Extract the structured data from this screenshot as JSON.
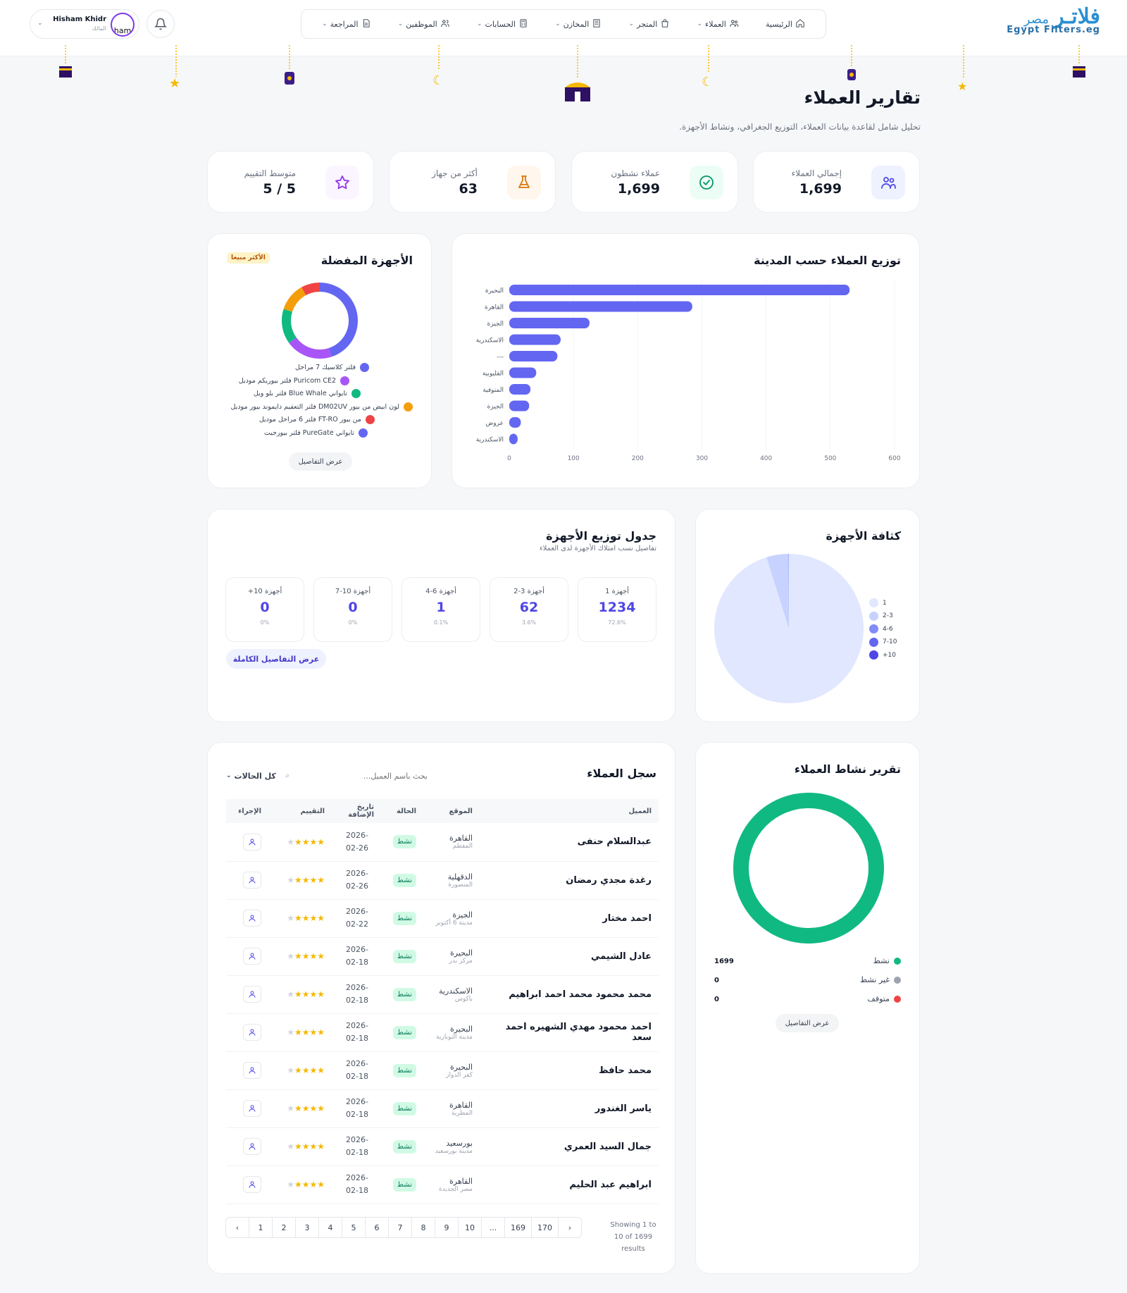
{
  "brand": {
    "logo_ar": "فلاتـر",
    "logo_ar2": "مصر",
    "logo_en": "Egypt Filters.eg",
    "accent": "#4f46e5"
  },
  "nav": [
    {
      "label": "الرئيسية",
      "icon": "home-icon",
      "chevron": false
    },
    {
      "label": "العملاء",
      "icon": "users-icon",
      "chevron": true
    },
    {
      "label": "المتجر",
      "icon": "shop-bag-icon",
      "chevron": true
    },
    {
      "label": "المخازن",
      "icon": "building-icon",
      "chevron": true
    },
    {
      "label": "الحسابات",
      "icon": "calculator-icon",
      "chevron": true
    },
    {
      "label": "الموظفين",
      "icon": "staff-icon",
      "chevron": true
    },
    {
      "label": "المراجعة",
      "icon": "document-icon",
      "chevron": true
    }
  ],
  "user": {
    "name": "Hisham Khidr",
    "role": "المالك",
    "avatar_text": "ham"
  },
  "page": {
    "title": "تقارير العملاء",
    "subtitle": "تحليل شامل لقاعدة بيانات العملاء، التوزيع الجغرافي، ونشاط الأجهزة."
  },
  "stats": [
    {
      "label": "إجمالي العملاء",
      "value": "1,699",
      "icon": "users-icon",
      "color": "#4f46e5",
      "bg": "#eef2ff"
    },
    {
      "label": "عملاء نشطون",
      "value": "1,699",
      "icon": "check-circle-icon",
      "color": "#059669",
      "bg": "#ecfdf5"
    },
    {
      "label": "أكثر من جهاز",
      "value": "63",
      "icon": "flask-icon",
      "color": "#d97706",
      "bg": "#fff7ed"
    },
    {
      "label": "متوسط التقييم",
      "value": "5 / 5",
      "icon": "star-icon",
      "color": "#9333ea",
      "bg": "#faf5ff"
    }
  ],
  "city_chart": {
    "title": "توزيع العملاء حسب المدينة"
  },
  "devices": {
    "title": "الأجهزة المفضلة",
    "badge": "الأكثر مبيعا",
    "details_label": "عرض التفاصيل",
    "legend": [
      {
        "label": "فلتر كلاسيك 7 مراحل",
        "color": "#6366f1"
      },
      {
        "label": "فلتر بيوريكم موديل Puricom CE2",
        "color": "#a855f7"
      },
      {
        "label": "فلتر بلو ويل Blue Whale تايواني",
        "color": "#10b981"
      },
      {
        "label": "فلتر التعقيم دايموند بيور موديل DM02UV لون ابيض من بيور",
        "color": "#f59e0b"
      },
      {
        "label": "فلتر 6 مراحل موديل FT-RO من بيور",
        "color": "#ef4444"
      },
      {
        "label": "فلتر بيورجيت PureGate تايواني",
        "color": "#6366f1"
      }
    ]
  },
  "density": {
    "title": "كثافة الأجهزة",
    "legend": [
      {
        "label": "1",
        "color": "#e0e7ff"
      },
      {
        "label": "2-3",
        "color": "#c7d2fe"
      },
      {
        "label": "4-6",
        "color": "#818cf8"
      },
      {
        "label": "7-10",
        "color": "#6366f1"
      },
      {
        "label": "+10",
        "color": "#4f46e5"
      }
    ]
  },
  "dist_table": {
    "title": "جدول توزيع الأجهزة",
    "subtitle": "تفاصيل نسب امتلاك الأجهزة لدى العملاء",
    "btn": "عرض التفاصيل الكاملة",
    "items": [
      {
        "label": "1 أجهزة",
        "count": "1234",
        "pct": "72.6%"
      },
      {
        "label": "2-3 أجهزة",
        "count": "62",
        "pct": "3.6%"
      },
      {
        "label": "4-6 أجهزة",
        "count": "1",
        "pct": "0.1%"
      },
      {
        "label": "7-10 أجهزة",
        "count": "0",
        "pct": "0%"
      },
      {
        "label": "+10 أجهزة",
        "count": "0",
        "pct": "0%"
      }
    ]
  },
  "activity": {
    "title": "تقرير نشاط العملاء",
    "details_label": "عرض التفاصيل",
    "items": [
      {
        "label": "نشط",
        "value": "1699",
        "color": "#10b981"
      },
      {
        "label": "غير نشط",
        "value": "0",
        "color": "#9ca3af"
      },
      {
        "label": "متوقف",
        "value": "0",
        "color": "#ef4444"
      }
    ]
  },
  "customers": {
    "title": "سجل العملاء",
    "search_placeholder": "بحث باسم العميل...",
    "filter_label": "كل الحالات",
    "columns": [
      "العميل",
      "الموقع",
      "الحالة",
      "تاريخ الإضافة",
      "التقييم",
      "الإجراء"
    ],
    "rows": [
      {
        "name": "عبدالسلام حنفى",
        "city": "القاهرة",
        "area": "المقطم",
        "status": "نشط",
        "date": "2026-02-26"
      },
      {
        "name": "رغدة مجدي رمضان",
        "city": "الدقهلية",
        "area": "المنصورة",
        "status": "نشط",
        "date": "2026-02-26"
      },
      {
        "name": "احمد مختار",
        "city": "الجيزة",
        "area": "مدينة 6 أكتوبر",
        "status": "نشط",
        "date": "2026-02-22"
      },
      {
        "name": "عادل الشيمي",
        "city": "البحيرة",
        "area": "مركز بدر",
        "status": "نشط",
        "date": "2026-02-18"
      },
      {
        "name": "محمد محمود محمد احمد ابراهيم",
        "city": "الاسكندرية",
        "area": "باكوس",
        "status": "نشط",
        "date": "2026-02-18"
      },
      {
        "name": "احمد محمود مهدي الشهيره احمد سعد",
        "city": "البحيرة",
        "area": "مدينة النوبارية",
        "status": "نشط",
        "date": "2026-02-18"
      },
      {
        "name": "محمد حافظ",
        "city": "البحيرة",
        "area": "كفر الدوار",
        "status": "نشط",
        "date": "2026-02-18"
      },
      {
        "name": "ياسر الغندور",
        "city": "القاهرة",
        "area": "المطرية",
        "status": "نشط",
        "date": "2026-02-18"
      },
      {
        "name": "جمال السيد العمري",
        "city": "بورسعيد",
        "area": "مدينة بورسعيد",
        "status": "نشط",
        "date": "2026-02-18"
      },
      {
        "name": "ابراهيم عبد الحليم",
        "city": "القاهرة",
        "area": "مصر الجديدة",
        "status": "نشط",
        "date": "2026-02-18"
      }
    ],
    "pages": [
      "‹",
      "1",
      "2",
      "3",
      "4",
      "5",
      "6",
      "7",
      "8",
      "9",
      "10",
      "...",
      "169",
      "170",
      "›"
    ],
    "showing": "Showing 1 to 10 of 1699 results"
  },
  "chart_data": [
    {
      "type": "bar",
      "orientation": "horizontal",
      "title": "توزيع العملاء حسب المدينة",
      "categories": [
        "البحيرة",
        "القاهرة",
        "الجيزة",
        "الاسكندرية",
        "---",
        "القليوبية",
        "المنوفية",
        "الجيزة",
        "عروض",
        "الاسكندرية"
      ],
      "values": [
        530,
        285,
        125,
        80,
        75,
        42,
        33,
        31,
        18,
        13
      ],
      "xlim": [
        0,
        600
      ],
      "xticks": [
        "0",
        "100",
        "200",
        "300",
        "400",
        "500",
        "600"
      ],
      "color": "#6366f1"
    },
    {
      "type": "pie",
      "donut": true,
      "title": "الأجهزة المفضلة",
      "labels": [
        "فلتر كلاسيك 7 مراحل",
        "فلتر بيوريكم موديل Puricom CE2",
        "فلتر بلو ويل Blue Whale تايواني",
        "فلتر التعقيم دايموند بيور موديل DM02UV لون ابيض من بيور",
        "فلتر 6 مراحل موديل FT-RO من بيور"
      ],
      "values": [
        45,
        20,
        15,
        12,
        8
      ],
      "colors": [
        "#6366f1",
        "#a855f7",
        "#10b981",
        "#f59e0b",
        "#ef4444"
      ]
    },
    {
      "type": "pie",
      "title": "كثافة الأجهزة",
      "labels": [
        "1",
        "2-3",
        "4-6",
        "7-10",
        "+10"
      ],
      "values": [
        1234,
        62,
        1,
        0,
        0
      ],
      "colors": [
        "#e0e7ff",
        "#c7d2fe",
        "#818cf8",
        "#6366f1",
        "#4f46e5"
      ]
    },
    {
      "type": "pie",
      "donut": true,
      "title": "تقرير نشاط العملاء",
      "labels": [
        "نشط",
        "غير نشط",
        "متوقف"
      ],
      "values": [
        1699,
        0,
        0
      ],
      "colors": [
        "#10b981",
        "#9ca3af",
        "#ef4444"
      ]
    }
  ]
}
